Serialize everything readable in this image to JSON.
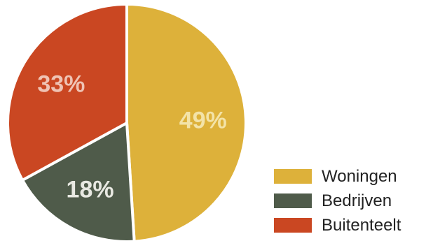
{
  "chart_data": {
    "type": "pie",
    "title": "",
    "unit": "%",
    "legend_position": "bottom-right",
    "start_angle_deg": 0,
    "direction": "clockwise",
    "slices": [
      {
        "label": "Woningen",
        "value": 49,
        "display": "49%",
        "color": "#DDB13A",
        "label_color": "#F3E3A8"
      },
      {
        "label": "Bedrijven",
        "value": 18,
        "display": "18%",
        "color": "#4F5B4A",
        "label_color": "#E8E9E2"
      },
      {
        "label": "Buitenteelt",
        "value": 33,
        "display": "33%",
        "color": "#CA4722",
        "label_color": "#EFC3B4"
      }
    ]
  }
}
